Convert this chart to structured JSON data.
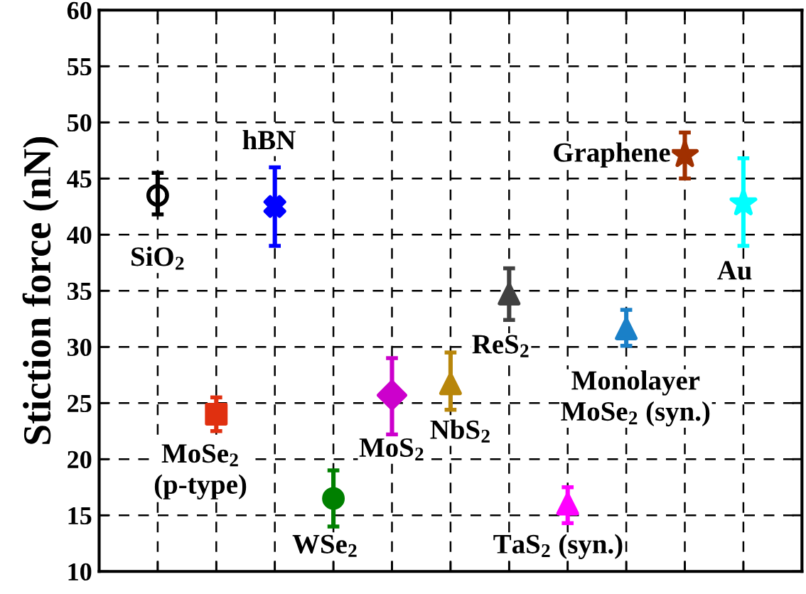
{
  "chart_data": {
    "type": "scatter",
    "ylabel": "Stiction force (nN)",
    "categories": [
      null,
      null,
      null,
      null,
      null,
      null,
      null,
      null,
      null,
      null,
      null
    ],
    "ylim": [
      10,
      60
    ],
    "yticks": [
      10,
      15,
      20,
      25,
      30,
      35,
      40,
      45,
      50,
      55,
      60
    ],
    "grid": true,
    "tick_labels": "y",
    "series": [
      {
        "name": "SiO$_{2}$",
        "color": "#000000",
        "marker": "circle",
        "values": [
          43.5,
          null,
          null,
          null,
          null,
          null,
          null,
          null,
          null,
          null,
          null
        ],
        "errors": [
          [
            41.8,
            45.5
          ],
          null,
          null,
          null,
          null,
          null,
          null,
          null,
          null,
          null,
          null
        ]
      },
      {
        "name": "MoSe$_{2}$\n(p-type)",
        "color": "#e03010",
        "marker": "square",
        "values": [
          null,
          24,
          null,
          null,
          null,
          null,
          null,
          null,
          null,
          null,
          null
        ],
        "errors": [
          null,
          [
            22.5,
            25.5
          ],
          null,
          null,
          null,
          null,
          null,
          null,
          null,
          null,
          null
        ]
      },
      {
        "name": "hBN",
        "color": "#0000ff",
        "marker": "cross",
        "values": [
          null,
          null,
          42.5,
          null,
          null,
          null,
          null,
          null,
          null,
          null,
          null
        ],
        "errors": [
          null,
          null,
          [
            39,
            46
          ],
          null,
          null,
          null,
          null,
          null,
          null,
          null,
          null
        ]
      },
      {
        "name": "WSe$_{2}$",
        "color": "#008000",
        "marker": "circle",
        "values": [
          null,
          null,
          null,
          16.5,
          null,
          null,
          null,
          null,
          null,
          null,
          null
        ],
        "errors": [
          null,
          null,
          null,
          [
            14,
            19
          ],
          null,
          null,
          null,
          null,
          null,
          null,
          null
        ]
      },
      {
        "name": "MoS$_{2}$",
        "color": "#cc00cc",
        "marker": "diamond",
        "values": [
          null,
          null,
          null,
          null,
          25.7,
          null,
          null,
          null,
          null,
          null,
          null
        ],
        "errors": [
          null,
          null,
          null,
          null,
          [
            22.2,
            29
          ],
          null,
          null,
          null,
          null,
          null,
          null
        ]
      },
      {
        "name": "NbS$_{2}$",
        "color": "#b8860b",
        "marker": "triangle",
        "values": [
          null,
          null,
          null,
          null,
          null,
          26.7,
          null,
          null,
          null,
          null,
          null
        ],
        "errors": [
          null,
          null,
          null,
          null,
          null,
          [
            24.4,
            29.5
          ],
          null,
          null,
          null,
          null,
          null
        ]
      },
      {
        "name": "ReS$_{2}$",
        "color": "#404040",
        "marker": "triangle",
        "values": [
          null,
          null,
          null,
          null,
          null,
          null,
          34.7,
          null,
          null,
          null,
          null
        ],
        "errors": [
          null,
          null,
          null,
          null,
          null,
          null,
          [
            32.4,
            37
          ],
          null,
          null,
          null,
          null
        ]
      },
      {
        "name": "TaS$_{2}$ (syn.)",
        "color": "#ff00ff",
        "marker": "triangle",
        "values": [
          null,
          null,
          null,
          null,
          null,
          null,
          null,
          16,
          null,
          null,
          null
        ],
        "errors": [
          null,
          null,
          null,
          null,
          null,
          null,
          null,
          [
            14.3,
            17.5
          ],
          null,
          null,
          null
        ]
      },
      {
        "name": "Monolayer\nMoSe$_{2}$ (syn.)",
        "color": "#1a80c8",
        "marker": "triangle",
        "values": [
          null,
          null,
          null,
          null,
          null,
          null,
          null,
          null,
          31.6,
          null,
          null
        ],
        "errors": [
          null,
          null,
          null,
          null,
          null,
          null,
          null,
          null,
          [
            30.1,
            33.3
          ],
          null,
          null
        ]
      },
      {
        "name": "Graphene",
        "color": "#a03000",
        "marker": "star",
        "values": [
          null,
          null,
          null,
          null,
          null,
          null,
          null,
          null,
          null,
          47.1,
          null
        ],
        "errors": [
          null,
          null,
          null,
          null,
          null,
          null,
          null,
          null,
          null,
          [
            45,
            49.1
          ],
          null
        ]
      },
      {
        "name": "Au",
        "color": "#00ffff",
        "marker": "star",
        "values": [
          null,
          null,
          null,
          null,
          null,
          null,
          null,
          null,
          null,
          null,
          42.8
        ],
        "errors": [
          null,
          null,
          null,
          null,
          null,
          null,
          null,
          null,
          null,
          null,
          [
            39,
            46.8
          ]
        ]
      }
    ]
  }
}
